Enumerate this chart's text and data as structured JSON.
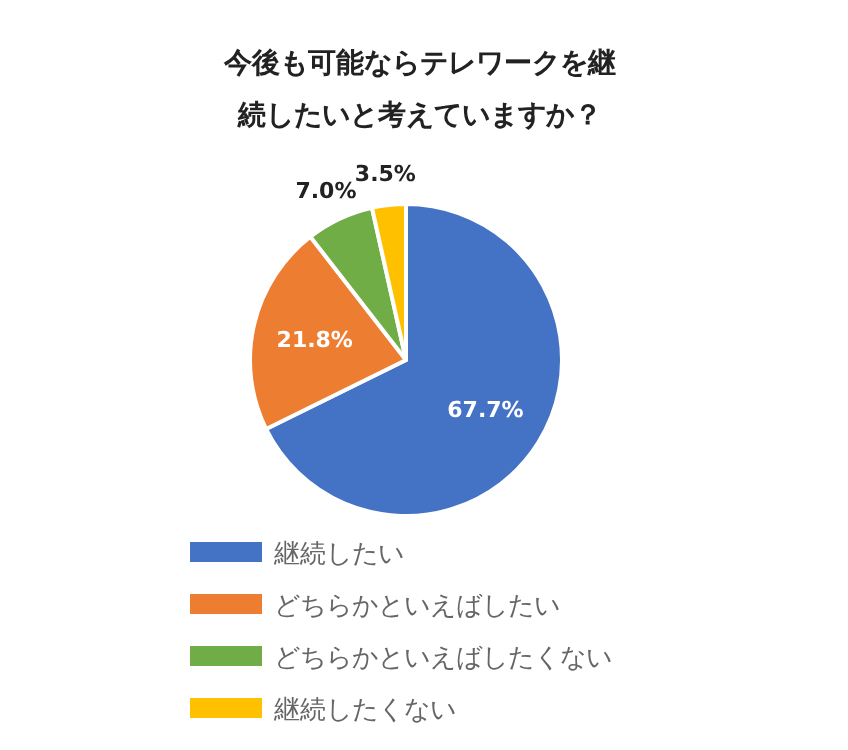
{
  "chart_data": {
    "type": "pie",
    "title": "今後も可能ならテレワークを継続したいと考えていますか？",
    "categories": [
      "継続したい",
      "どちらかといえばしたい",
      "どちらかといえばしたくない",
      "継続したくない"
    ],
    "values": [
      67.7,
      21.8,
      7.0,
      3.5
    ],
    "colors": [
      "#4472c4",
      "#ed7d31",
      "#70ad47",
      "#ffc000"
    ],
    "value_labels": [
      "67.7%",
      "21.8%",
      "7.0%",
      "3.5%"
    ],
    "legend": "bottom"
  }
}
